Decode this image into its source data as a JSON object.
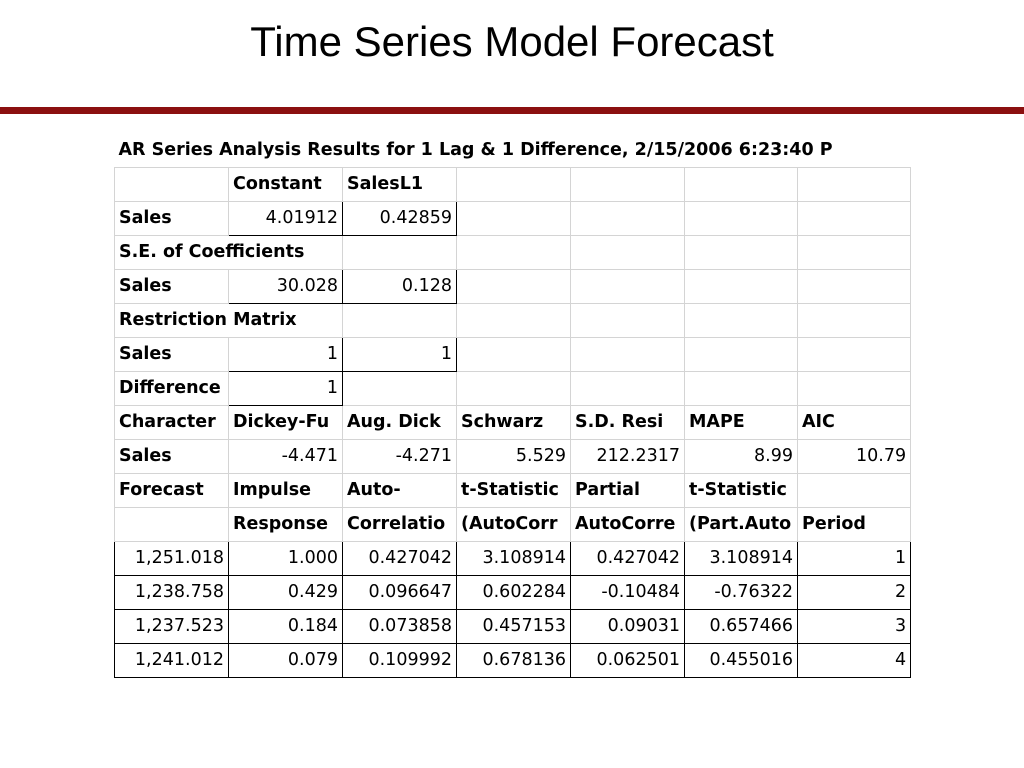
{
  "title": "Time Series Model Forecast",
  "sheet": {
    "caption": "AR Series Analysis Results for 1 Lag & 1 Difference, 2/15/2006 6:23:40 P",
    "rows": [
      [
        null,
        "Constant",
        "SalesL1",
        null,
        null,
        null,
        null
      ],
      [
        "Sales",
        "4.01912",
        "0.42859",
        null,
        null,
        null,
        null
      ],
      [
        "S.E. of Coefficients",
        null,
        null,
        null,
        null,
        null
      ],
      [
        "Sales",
        "30.028",
        "0.128",
        null,
        null,
        null,
        null
      ],
      [
        "Restriction Matrix",
        null,
        null,
        null,
        null,
        null
      ],
      [
        "Sales",
        "1",
        "1",
        null,
        null,
        null,
        null
      ],
      [
        "Difference",
        "1",
        null,
        null,
        null,
        null,
        null
      ],
      [
        "Character",
        "Dickey-Fu",
        "Aug. Dick",
        "Schwarz",
        "S.D. Resi",
        "MAPE",
        "AIC"
      ],
      [
        "Sales",
        "-4.471",
        "-4.271",
        "5.529",
        "212.2317",
        "8.99",
        "10.79"
      ],
      [
        "Forecast",
        "Impulse",
        "Auto-",
        "t-Statistic",
        "Partial",
        "t-Statistic",
        null
      ],
      [
        null,
        "Response",
        "Correlatio",
        "(AutoCorr",
        "AutoCorre",
        "(Part.Auto",
        "Period"
      ],
      [
        "1,251.018",
        "1.000",
        "0.427042",
        "3.108914",
        "0.427042",
        "3.108914",
        "1"
      ],
      [
        "1,238.758",
        "0.429",
        "0.096647",
        "0.602284",
        "-0.10484",
        "-0.76322",
        "2"
      ],
      [
        "1,237.523",
        "0.184",
        "0.073858",
        "0.457153",
        "0.09031",
        "0.657466",
        "3"
      ],
      [
        "1,241.012",
        "0.079",
        "0.109992",
        "0.678136",
        "0.062501",
        "0.455016",
        "4"
      ]
    ]
  }
}
